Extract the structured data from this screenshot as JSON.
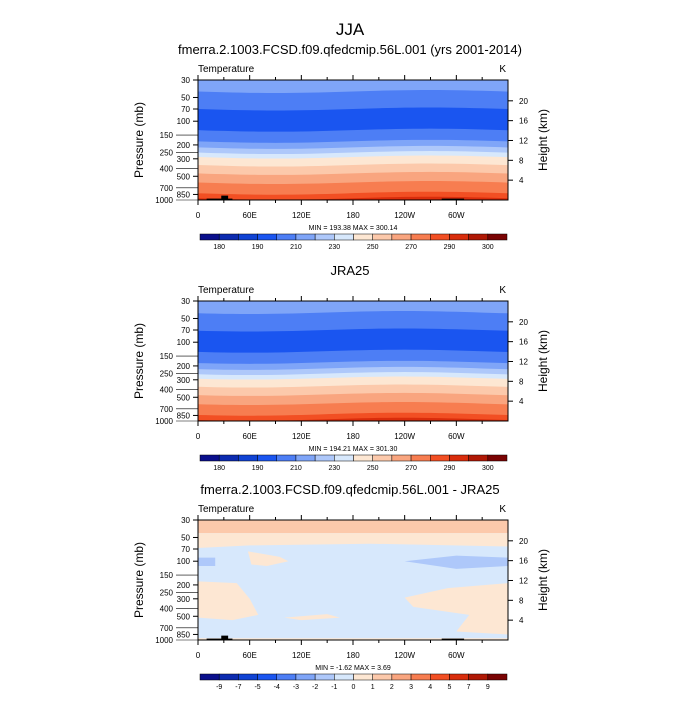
{
  "chart_data": {
    "title": "JJA",
    "type": "heatmap",
    "colors": [
      "#0a0f8c",
      "#0c2bb0",
      "#1043d4",
      "#1a55f0",
      "#4d7ef5",
      "#7fa5f8",
      "#aec8fa",
      "#d7e8fc",
      "#fde7d3",
      "#fcc9ab",
      "#f9a57f",
      "#f77d50",
      "#f24f23",
      "#d92d0c",
      "#b01805",
      "#7a0303"
    ],
    "panels": [
      {
        "title": "fmerra.2.1003.FCSD.f09.qfedcmip.56L.001 (yrs 2001-2014)",
        "left_label": "Temperature",
        "right_label": "K",
        "ylabel": "Pressure (mb)",
        "ylabel_right": "Height (km)",
        "stats": "MIN = 193.38  MAX = 300.14",
        "levels": [
          180,
          185,
          190,
          200,
          210,
          220,
          230,
          240,
          250,
          260,
          270,
          280,
          290,
          295,
          300
        ],
        "colorbar_labels": [
          "180",
          "190",
          "210",
          "230",
          "250",
          "270",
          "290",
          "300"
        ],
        "colorbar_label_every": 2
      },
      {
        "title": "JRA25",
        "left_label": "Temperature",
        "right_label": "K",
        "ylabel": "Pressure (mb)",
        "ylabel_right": "Height (km)",
        "stats": "MIN = 194.21  MAX = 301.30",
        "levels": [
          180,
          185,
          190,
          200,
          210,
          220,
          230,
          240,
          250,
          260,
          270,
          280,
          290,
          295,
          300
        ],
        "colorbar_labels": [
          "180",
          "190",
          "210",
          "230",
          "250",
          "270",
          "290",
          "300"
        ],
        "colorbar_label_every": 2
      },
      {
        "title": "fmerra.2.1003.FCSD.f09.qfedcmip.56L.001 - JRA25",
        "left_label": "Temperature",
        "right_label": "K",
        "ylabel": "Pressure (mb)",
        "ylabel_right": "Height (km)",
        "stats": "MIN =  -1.62  MAX =   3.69",
        "levels": [
          -9,
          -7,
          -5,
          -4,
          -3,
          -2,
          -1,
          0,
          1,
          2,
          3,
          4,
          5,
          7,
          9
        ],
        "colorbar_labels": [
          "-9",
          "-7",
          "-5",
          "-4",
          "-3",
          "-2",
          "-1",
          "0",
          "1",
          "2",
          "3",
          "4",
          "5",
          "7",
          "9"
        ],
        "colorbar_label_every": 1
      }
    ],
    "x_ticks": [
      "0",
      "60E",
      "120E",
      "180",
      "120W",
      "60W"
    ],
    "x_tick_values": [
      0,
      60,
      120,
      180,
      240,
      300
    ],
    "xlim": [
      0,
      360
    ],
    "y_ticks": [
      "30",
      "50",
      "70",
      "100",
      "150",
      "200",
      "250",
      "300",
      "400",
      "500",
      "700",
      "850",
      "1000"
    ],
    "y_tick_values": [
      30,
      50,
      70,
      100,
      150,
      200,
      250,
      300,
      400,
      500,
      700,
      850,
      1000
    ],
    "ylim": [
      1000,
      30
    ],
    "y_scale": "log",
    "y_right_ticks": [
      "4",
      "8",
      "12",
      "16",
      "20"
    ],
    "y_right_tick_values": [
      4,
      8,
      12,
      16,
      20
    ]
  }
}
